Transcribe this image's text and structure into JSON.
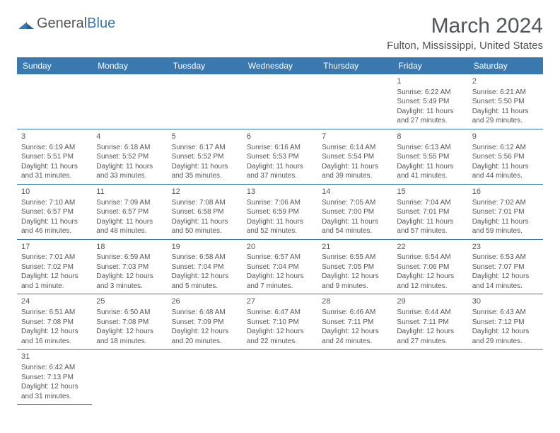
{
  "logo": {
    "general": "General",
    "blue": "Blue"
  },
  "title": "March 2024",
  "location": "Fulton, Mississippi, United States",
  "colors": {
    "header_bg": "#3a78b0",
    "header_text": "#ffffff",
    "text": "#555555",
    "border": "#3a78b0",
    "logo_gray": "#505558",
    "logo_blue": "#3a78b0"
  },
  "dayHeaders": [
    "Sunday",
    "Monday",
    "Tuesday",
    "Wednesday",
    "Thursday",
    "Friday",
    "Saturday"
  ],
  "leadingBlanks": 5,
  "days": [
    {
      "n": 1,
      "sr": "6:22 AM",
      "ss": "5:49 PM",
      "dl": "11 hours and 27 minutes."
    },
    {
      "n": 2,
      "sr": "6:21 AM",
      "ss": "5:50 PM",
      "dl": "11 hours and 29 minutes."
    },
    {
      "n": 3,
      "sr": "6:19 AM",
      "ss": "5:51 PM",
      "dl": "11 hours and 31 minutes."
    },
    {
      "n": 4,
      "sr": "6:18 AM",
      "ss": "5:52 PM",
      "dl": "11 hours and 33 minutes."
    },
    {
      "n": 5,
      "sr": "6:17 AM",
      "ss": "5:52 PM",
      "dl": "11 hours and 35 minutes."
    },
    {
      "n": 6,
      "sr": "6:16 AM",
      "ss": "5:53 PM",
      "dl": "11 hours and 37 minutes."
    },
    {
      "n": 7,
      "sr": "6:14 AM",
      "ss": "5:54 PM",
      "dl": "11 hours and 39 minutes."
    },
    {
      "n": 8,
      "sr": "6:13 AM",
      "ss": "5:55 PM",
      "dl": "11 hours and 41 minutes."
    },
    {
      "n": 9,
      "sr": "6:12 AM",
      "ss": "5:56 PM",
      "dl": "11 hours and 44 minutes."
    },
    {
      "n": 10,
      "sr": "7:10 AM",
      "ss": "6:57 PM",
      "dl": "11 hours and 46 minutes."
    },
    {
      "n": 11,
      "sr": "7:09 AM",
      "ss": "6:57 PM",
      "dl": "11 hours and 48 minutes."
    },
    {
      "n": 12,
      "sr": "7:08 AM",
      "ss": "6:58 PM",
      "dl": "11 hours and 50 minutes."
    },
    {
      "n": 13,
      "sr": "7:06 AM",
      "ss": "6:59 PM",
      "dl": "11 hours and 52 minutes."
    },
    {
      "n": 14,
      "sr": "7:05 AM",
      "ss": "7:00 PM",
      "dl": "11 hours and 54 minutes."
    },
    {
      "n": 15,
      "sr": "7:04 AM",
      "ss": "7:01 PM",
      "dl": "11 hours and 57 minutes."
    },
    {
      "n": 16,
      "sr": "7:02 AM",
      "ss": "7:01 PM",
      "dl": "11 hours and 59 minutes."
    },
    {
      "n": 17,
      "sr": "7:01 AM",
      "ss": "7:02 PM",
      "dl": "12 hours and 1 minute."
    },
    {
      "n": 18,
      "sr": "6:59 AM",
      "ss": "7:03 PM",
      "dl": "12 hours and 3 minutes."
    },
    {
      "n": 19,
      "sr": "6:58 AM",
      "ss": "7:04 PM",
      "dl": "12 hours and 5 minutes."
    },
    {
      "n": 20,
      "sr": "6:57 AM",
      "ss": "7:04 PM",
      "dl": "12 hours and 7 minutes."
    },
    {
      "n": 21,
      "sr": "6:55 AM",
      "ss": "7:05 PM",
      "dl": "12 hours and 9 minutes."
    },
    {
      "n": 22,
      "sr": "6:54 AM",
      "ss": "7:06 PM",
      "dl": "12 hours and 12 minutes."
    },
    {
      "n": 23,
      "sr": "6:53 AM",
      "ss": "7:07 PM",
      "dl": "12 hours and 14 minutes."
    },
    {
      "n": 24,
      "sr": "6:51 AM",
      "ss": "7:08 PM",
      "dl": "12 hours and 16 minutes."
    },
    {
      "n": 25,
      "sr": "6:50 AM",
      "ss": "7:08 PM",
      "dl": "12 hours and 18 minutes."
    },
    {
      "n": 26,
      "sr": "6:48 AM",
      "ss": "7:09 PM",
      "dl": "12 hours and 20 minutes."
    },
    {
      "n": 27,
      "sr": "6:47 AM",
      "ss": "7:10 PM",
      "dl": "12 hours and 22 minutes."
    },
    {
      "n": 28,
      "sr": "6:46 AM",
      "ss": "7:11 PM",
      "dl": "12 hours and 24 minutes."
    },
    {
      "n": 29,
      "sr": "6:44 AM",
      "ss": "7:11 PM",
      "dl": "12 hours and 27 minutes."
    },
    {
      "n": 30,
      "sr": "6:43 AM",
      "ss": "7:12 PM",
      "dl": "12 hours and 29 minutes."
    },
    {
      "n": 31,
      "sr": "6:42 AM",
      "ss": "7:13 PM",
      "dl": "12 hours and 31 minutes."
    }
  ],
  "labels": {
    "sunrise": "Sunrise: ",
    "sunset": "Sunset: ",
    "daylight": "Daylight: "
  }
}
